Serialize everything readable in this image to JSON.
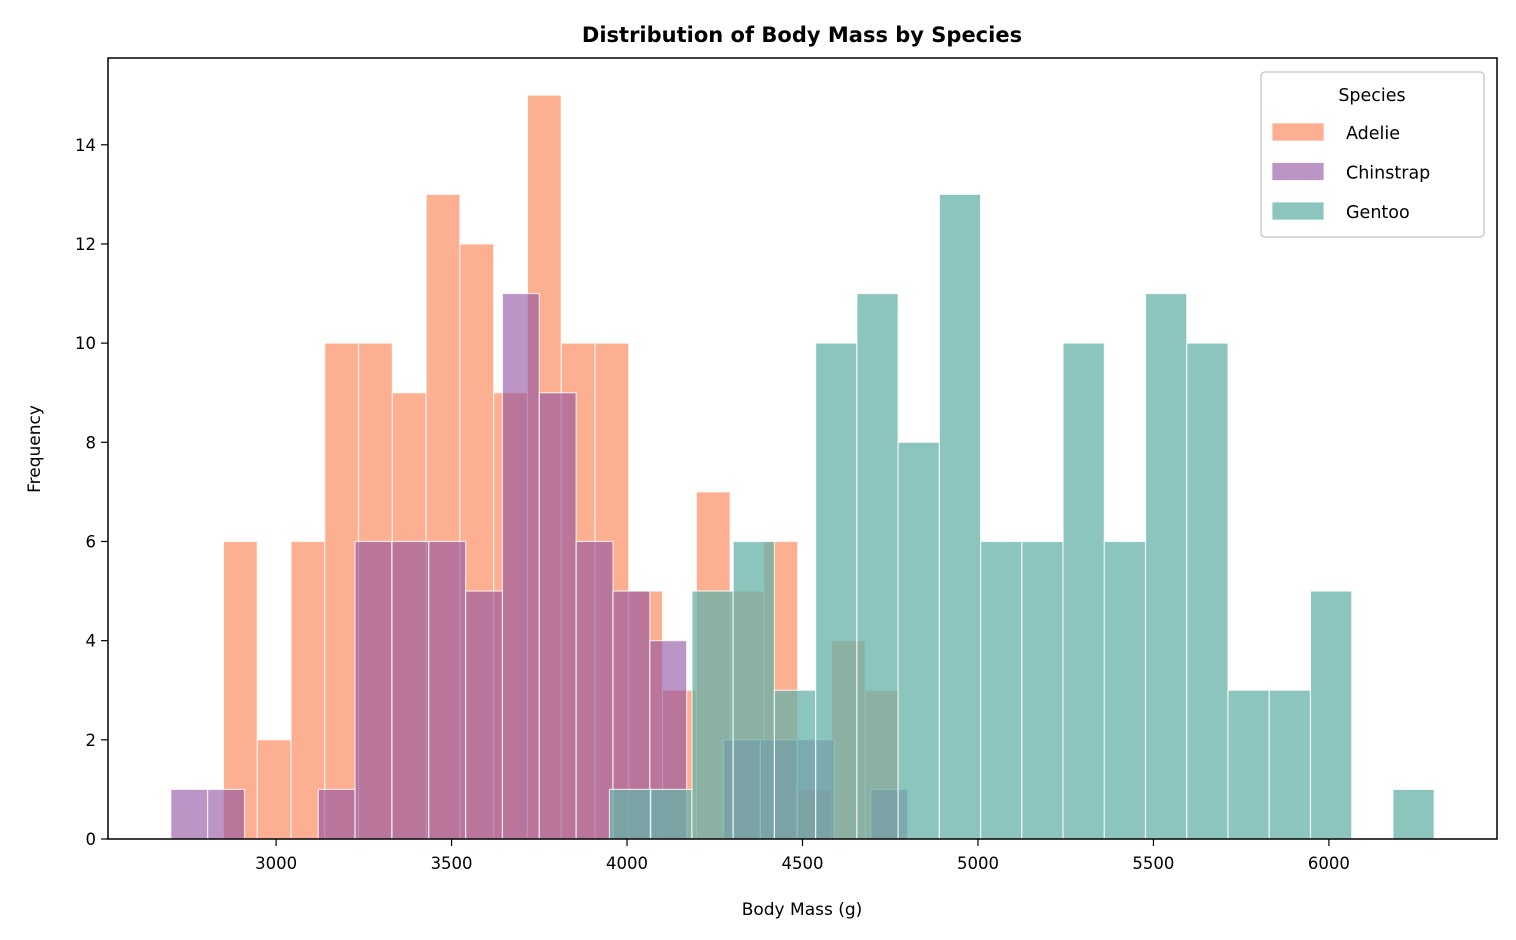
{
  "chart_data": {
    "type": "histogram",
    "title": "Distribution of Body Mass by Species",
    "xlabel": "Body Mass (g)",
    "ylabel": "Frequency",
    "xlim": [
      2521,
      6479
    ],
    "ylim": [
      0,
      15.75
    ],
    "xticks": [
      3000,
      3500,
      4000,
      4500,
      5000,
      5500,
      6000
    ],
    "yticks": [
      0,
      2,
      4,
      6,
      8,
      10,
      12,
      14
    ],
    "grid": false,
    "legend": {
      "title": "Species",
      "position": "top-right"
    },
    "series": [
      {
        "name": "Adelie",
        "color": "#fc8d62",
        "alpha": 0.7,
        "bin_start": 2850,
        "bin_end": 4775,
        "counts": [
          6,
          2,
          6,
          10,
          10,
          9,
          13,
          12,
          9,
          15,
          10,
          10,
          5,
          3,
          7,
          5,
          6,
          1,
          4,
          3
        ]
      },
      {
        "name": "Chinstrap",
        "color": "#8e4fa0",
        "alpha": 0.6,
        "bin_start": 2700,
        "bin_end": 4800,
        "counts": [
          1,
          1,
          0,
          0,
          1,
          6,
          6,
          6,
          5,
          11,
          9,
          6,
          5,
          4,
          0,
          2,
          2,
          2,
          0,
          1
        ]
      },
      {
        "name": "Gentoo",
        "color": "#66b2a8",
        "alpha": 0.75,
        "bin_start": 3950,
        "bin_end": 6300,
        "counts": [
          1,
          1,
          5,
          6,
          3,
          10,
          11,
          8,
          13,
          6,
          6,
          10,
          6,
          11,
          10,
          3,
          3,
          5,
          0,
          1
        ]
      }
    ]
  }
}
